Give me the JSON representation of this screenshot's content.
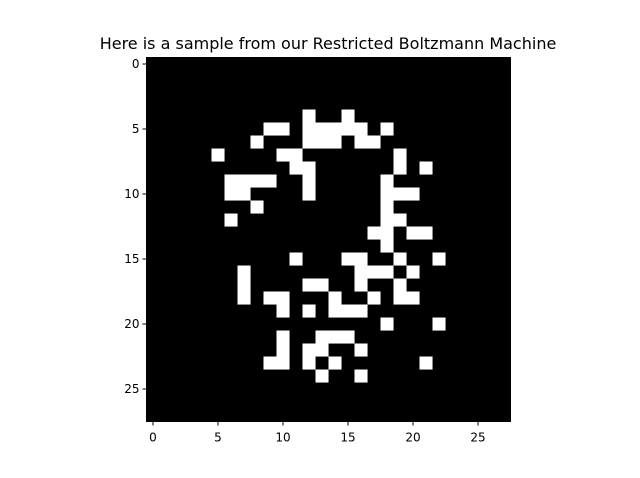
{
  "chart_data": {
    "type": "heatmap",
    "title": "Here is a sample from our Restricted Boltzmann Machine",
    "xlabel": "",
    "ylabel": "",
    "grid": false,
    "colormap": "gray",
    "colors": {
      "off": "#000000",
      "on": "#ffffff",
      "frame": "#000000",
      "text": "#000000"
    },
    "shape": [
      28,
      28
    ],
    "xlim": [
      -0.5,
      27.5
    ],
    "ylim": [
      27.5,
      -0.5
    ],
    "x_ticks": [
      0,
      5,
      10,
      15,
      20,
      25
    ],
    "y_ticks": [
      0,
      5,
      10,
      15,
      20,
      25
    ],
    "x_tick_labels": [
      "0",
      "5",
      "10",
      "15",
      "20",
      "25"
    ],
    "y_tick_labels": [
      "0",
      "5",
      "10",
      "15",
      "20",
      "25"
    ],
    "pixels_on": [
      [
        4,
        12
      ],
      [
        4,
        15
      ],
      [
        5,
        9
      ],
      [
        5,
        10
      ],
      [
        5,
        12
      ],
      [
        5,
        13
      ],
      [
        5,
        14
      ],
      [
        5,
        15
      ],
      [
        5,
        16
      ],
      [
        5,
        18
      ],
      [
        6,
        8
      ],
      [
        6,
        12
      ],
      [
        6,
        13
      ],
      [
        6,
        14
      ],
      [
        6,
        16
      ],
      [
        6,
        17
      ],
      [
        7,
        5
      ],
      [
        7,
        10
      ],
      [
        7,
        11
      ],
      [
        7,
        19
      ],
      [
        8,
        11
      ],
      [
        8,
        12
      ],
      [
        8,
        19
      ],
      [
        8,
        21
      ],
      [
        9,
        6
      ],
      [
        9,
        7
      ],
      [
        9,
        8
      ],
      [
        9,
        9
      ],
      [
        9,
        12
      ],
      [
        9,
        18
      ],
      [
        10,
        6
      ],
      [
        10,
        7
      ],
      [
        10,
        12
      ],
      [
        10,
        18
      ],
      [
        10,
        19
      ],
      [
        10,
        20
      ],
      [
        11,
        8
      ],
      [
        11,
        18
      ],
      [
        12,
        6
      ],
      [
        12,
        18
      ],
      [
        12,
        19
      ],
      [
        13,
        17
      ],
      [
        13,
        18
      ],
      [
        13,
        20
      ],
      [
        13,
        21
      ],
      [
        14,
        18
      ],
      [
        15,
        11
      ],
      [
        15,
        15
      ],
      [
        15,
        16
      ],
      [
        15,
        19
      ],
      [
        15,
        22
      ],
      [
        16,
        7
      ],
      [
        16,
        16
      ],
      [
        16,
        17
      ],
      [
        16,
        18
      ],
      [
        16,
        20
      ],
      [
        17,
        7
      ],
      [
        17,
        12
      ],
      [
        17,
        13
      ],
      [
        17,
        16
      ],
      [
        17,
        19
      ],
      [
        18,
        7
      ],
      [
        18,
        9
      ],
      [
        18,
        10
      ],
      [
        18,
        14
      ],
      [
        18,
        17
      ],
      [
        18,
        19
      ],
      [
        18,
        20
      ],
      [
        19,
        10
      ],
      [
        19,
        12
      ],
      [
        19,
        14
      ],
      [
        19,
        15
      ],
      [
        19,
        16
      ],
      [
        20,
        18
      ],
      [
        20,
        22
      ],
      [
        21,
        10
      ],
      [
        21,
        13
      ],
      [
        21,
        14
      ],
      [
        21,
        15
      ],
      [
        22,
        10
      ],
      [
        22,
        12
      ],
      [
        22,
        13
      ],
      [
        22,
        16
      ],
      [
        23,
        9
      ],
      [
        23,
        10
      ],
      [
        23,
        12
      ],
      [
        23,
        14
      ],
      [
        23,
        21
      ],
      [
        24,
        13
      ],
      [
        24,
        16
      ]
    ]
  }
}
